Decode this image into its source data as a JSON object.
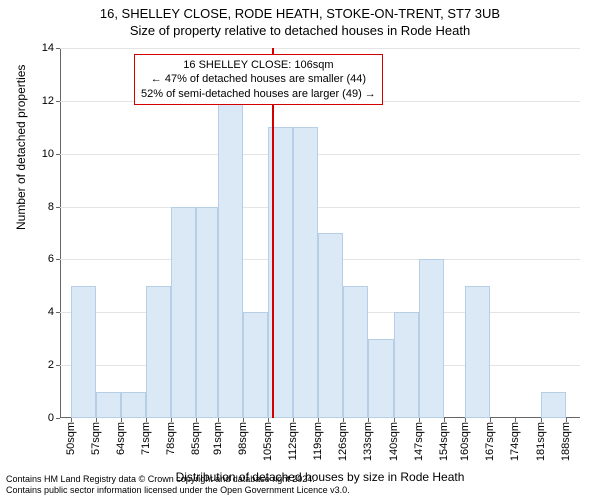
{
  "title": {
    "line1": "16, SHELLEY CLOSE, RODE HEATH, STOKE-ON-TRENT, ST7 3UB",
    "line2": "Size of property relative to detached houses in Rode Heath"
  },
  "chart": {
    "type": "histogram",
    "bar_color": "#dbe8f5",
    "bar_border": "#b7cfe6",
    "grid_color": "#e4e4e4",
    "background_color": "#ffffff",
    "refline_color": "#d40000",
    "refline_x": 106,
    "annotation": {
      "line1": "16 SHELLEY CLOSE: 106sqm",
      "line2": "← 47% of detached houses are smaller (44)",
      "line3": "52% of semi-detached houses are larger (49) →"
    },
    "ylabel": "Number of detached properties",
    "xlabel": "Distribution of detached houses by size in Rode Heath",
    "ylim": [
      0,
      14
    ],
    "yticks": [
      0,
      2,
      4,
      6,
      8,
      10,
      12,
      14
    ],
    "xlim": [
      47,
      192
    ],
    "xticks": [
      50,
      57,
      64,
      71,
      78,
      85,
      91,
      98,
      105,
      112,
      119,
      126,
      133,
      140,
      147,
      154,
      160,
      167,
      174,
      181,
      188
    ],
    "xtick_suffix": "sqm",
    "bars": [
      {
        "x0": 50,
        "x1": 57,
        "y": 5
      },
      {
        "x0": 57,
        "x1": 64,
        "y": 1
      },
      {
        "x0": 64,
        "x1": 71,
        "y": 1
      },
      {
        "x0": 71,
        "x1": 78,
        "y": 5
      },
      {
        "x0": 78,
        "x1": 85,
        "y": 8
      },
      {
        "x0": 85,
        "x1": 91,
        "y": 8
      },
      {
        "x0": 91,
        "x1": 98,
        "y": 12
      },
      {
        "x0": 98,
        "x1": 105,
        "y": 4
      },
      {
        "x0": 105,
        "x1": 112,
        "y": 11
      },
      {
        "x0": 112,
        "x1": 119,
        "y": 11
      },
      {
        "x0": 119,
        "x1": 126,
        "y": 7
      },
      {
        "x0": 126,
        "x1": 133,
        "y": 5
      },
      {
        "x0": 133,
        "x1": 140,
        "y": 3
      },
      {
        "x0": 140,
        "x1": 147,
        "y": 4
      },
      {
        "x0": 147,
        "x1": 154,
        "y": 6
      },
      {
        "x0": 154,
        "x1": 160,
        "y": 0
      },
      {
        "x0": 160,
        "x1": 167,
        "y": 5
      },
      {
        "x0": 167,
        "x1": 174,
        "y": 0
      },
      {
        "x0": 174,
        "x1": 181,
        "y": 0
      },
      {
        "x0": 181,
        "x1": 188,
        "y": 1
      }
    ]
  },
  "footer": {
    "line1": "Contains HM Land Registry data © Crown copyright and database right 2024.",
    "line2": "Contains public sector information licensed under the Open Government Licence v3.0."
  }
}
